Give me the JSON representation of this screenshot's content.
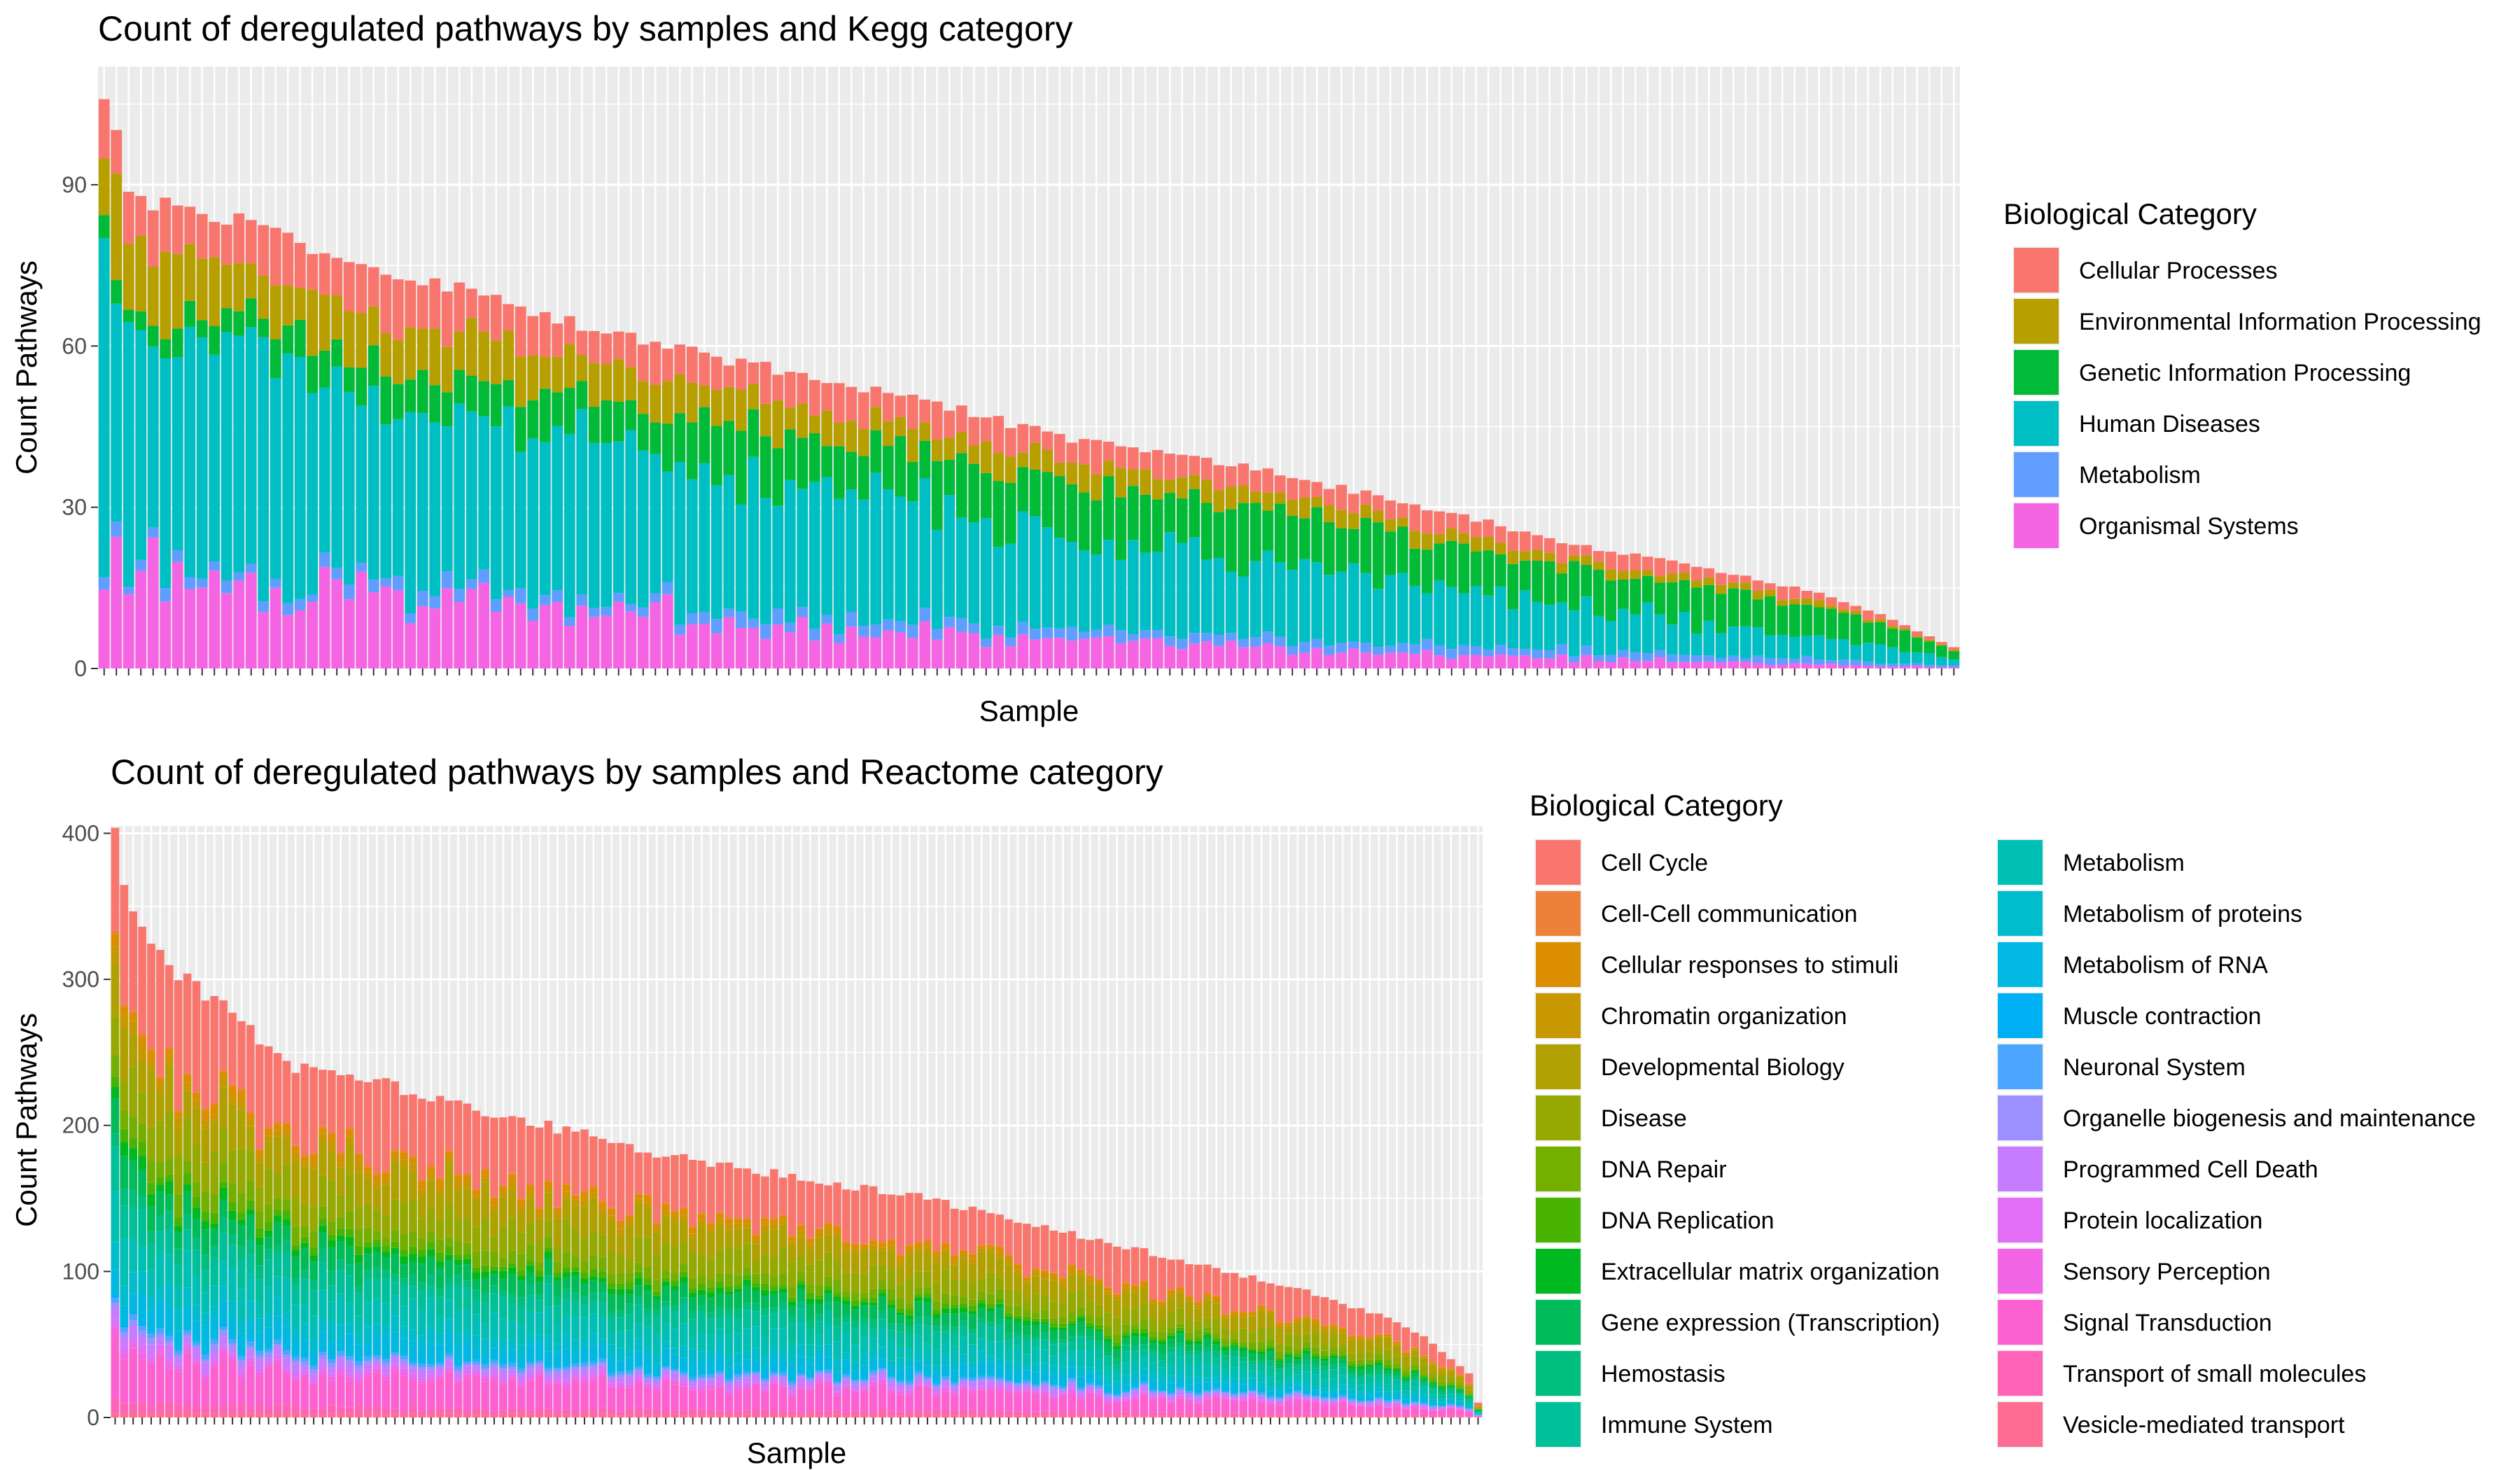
{
  "chart_data": [
    {
      "type": "bar",
      "stacked": true,
      "title": "Count of deregulated pathways by samples and Kegg category",
      "xlabel": "Sample",
      "ylabel": "Count Pathways",
      "ylim": [
        0,
        112
      ],
      "yticks": [
        0,
        30,
        60,
        90
      ],
      "grid": true,
      "x_tick_labels_visible": false,
      "sample_count": 152,
      "legend_position": "right",
      "legend_title": "Biological Category",
      "categories_order": [
        "Organismal Systems",
        "Metabolism",
        "Human Diseases",
        "Genetic Information Processing",
        "Environmental Information Processing",
        "Cellular Processes"
      ],
      "series": [
        {
          "name": "Cellular Processes",
          "color": "#F8766D",
          "share_start": 0.1,
          "share_end": 0.12
        },
        {
          "name": "Environmental Information Processing",
          "color": "#B79F00",
          "share_start": 0.13,
          "share_end": 0.06
        },
        {
          "name": "Genetic Information Processing",
          "color": "#00BA38",
          "share_start": 0.03,
          "share_end": 0.4
        },
        {
          "name": "Human Diseases",
          "color": "#00BFC4",
          "share_start": 0.52,
          "share_end": 0.3
        },
        {
          "name": "Metabolism",
          "color": "#619CFF",
          "share_start": 0.02,
          "share_end": 0.07
        },
        {
          "name": "Organismal Systems",
          "color": "#F564E3",
          "share_start": 0.2,
          "share_end": 0.05
        }
      ],
      "totals_approx": {
        "max": 108,
        "min": 4,
        "anchors": [
          [
            0,
            108
          ],
          [
            1,
            100
          ],
          [
            2,
            88
          ],
          [
            5,
            86
          ],
          [
            12,
            83
          ],
          [
            20,
            76
          ],
          [
            30,
            70
          ],
          [
            40,
            63
          ],
          [
            50,
            58
          ],
          [
            60,
            53
          ],
          [
            70,
            48
          ],
          [
            80,
            42
          ],
          [
            90,
            39
          ],
          [
            100,
            34
          ],
          [
            110,
            29
          ],
          [
            120,
            23
          ],
          [
            130,
            19
          ],
          [
            140,
            14
          ],
          [
            145,
            10
          ],
          [
            151,
            4
          ]
        ]
      }
    },
    {
      "type": "bar",
      "stacked": true,
      "title": "Count of deregulated pathways by samples and Reactome category",
      "xlabel": "Sample",
      "ylabel": "Count Pathways",
      "ylim": [
        0,
        405
      ],
      "yticks": [
        0,
        100,
        200,
        300,
        400
      ],
      "grid": true,
      "x_tick_labels_visible": false,
      "sample_count": 152,
      "legend_position": "right",
      "legend_title": "Biological Category",
      "series": [
        {
          "name": "Cell Cycle",
          "color": "#F8766D",
          "share": 0.22
        },
        {
          "name": "Cell-Cell communication",
          "color": "#EC8239",
          "share": 0.005
        },
        {
          "name": "Cellular responses to stimuli",
          "color": "#DB8E00",
          "share": 0.02
        },
        {
          "name": "Chromatin organization",
          "color": "#C79800",
          "share": 0.02
        },
        {
          "name": "Developmental Biology",
          "color": "#B0A100",
          "share": 0.09
        },
        {
          "name": "Disease",
          "color": "#95A900",
          "share": 0.08
        },
        {
          "name": "DNA Repair",
          "color": "#74AF00",
          "share": 0.04
        },
        {
          "name": "DNA Replication",
          "color": "#49B400",
          "share": 0.02
        },
        {
          "name": "Extracellular matrix organization",
          "color": "#00B81F",
          "share": 0.02
        },
        {
          "name": "Gene expression (Transcription)",
          "color": "#00BB59",
          "share": 0.05
        },
        {
          "name": "Hemostasis",
          "color": "#00BE7D",
          "share": 0.03
        },
        {
          "name": "Immune System",
          "color": "#00C09B",
          "share": 0.06
        },
        {
          "name": "Metabolism",
          "color": "#00C0B5",
          "share": 0.07
        },
        {
          "name": "Metabolism of proteins",
          "color": "#00BDCD",
          "share": 0.04
        },
        {
          "name": "Metabolism of RNA",
          "color": "#00B8E2",
          "share": 0.05
        },
        {
          "name": "Muscle contraction",
          "color": "#00B0F5",
          "share": 0.004
        },
        {
          "name": "Neuronal System",
          "color": "#4CA5FF",
          "share": 0.01
        },
        {
          "name": "Organelle biogenesis and maintenance",
          "color": "#9C8FFF",
          "share": 0.01
        },
        {
          "name": "Programmed Cell Death",
          "color": "#C77CFF",
          "share": 0.02
        },
        {
          "name": "Protein localization",
          "color": "#E26EF7",
          "share": 0.01
        },
        {
          "name": "Sensory Perception",
          "color": "#F265E6",
          "share": 0.01
        },
        {
          "name": "Signal Transduction",
          "color": "#FD61D1",
          "share": 0.09
        },
        {
          "name": "Transport of small molecules",
          "color": "#FF63B6",
          "share": 0.02
        },
        {
          "name": "Vesicle-mediated transport",
          "color": "#FF6C91",
          "share": 0.01
        }
      ],
      "totals_approx": {
        "max": 403,
        "min": 10,
        "anchors": [
          [
            0,
            403
          ],
          [
            1,
            360
          ],
          [
            2,
            343
          ],
          [
            4,
            330
          ],
          [
            7,
            305
          ],
          [
            12,
            280
          ],
          [
            20,
            240
          ],
          [
            30,
            228
          ],
          [
            40,
            210
          ],
          [
            50,
            197
          ],
          [
            60,
            180
          ],
          [
            70,
            170
          ],
          [
            80,
            160
          ],
          [
            90,
            150
          ],
          [
            100,
            135
          ],
          [
            110,
            120
          ],
          [
            120,
            105
          ],
          [
            130,
            90
          ],
          [
            140,
            70
          ],
          [
            145,
            56
          ],
          [
            150,
            30
          ],
          [
            151,
            10
          ]
        ]
      }
    }
  ]
}
